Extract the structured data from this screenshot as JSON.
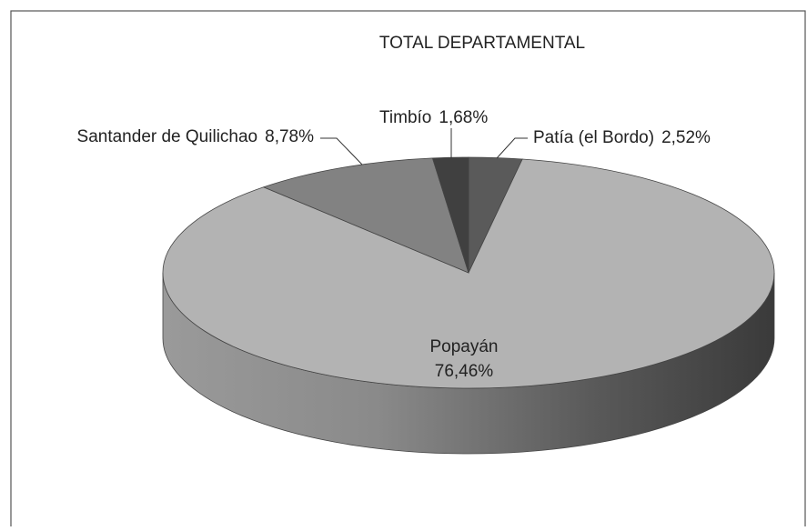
{
  "chart_data": {
    "type": "pie3d",
    "title": "TOTAL DEPARTAMENTAL",
    "categories": [
      "Patía (el Bordo)",
      "Popayán",
      "Santander de Quilichao",
      "Timbío"
    ],
    "values": [
      2.52,
      76.46,
      8.78,
      1.68
    ],
    "value_labels": [
      "2,52%",
      "76,46%",
      "8,78%",
      "1,68%"
    ],
    "colors": [
      "#5a5a5a",
      "#b3b3b3",
      "#828282",
      "#404040"
    ]
  }
}
